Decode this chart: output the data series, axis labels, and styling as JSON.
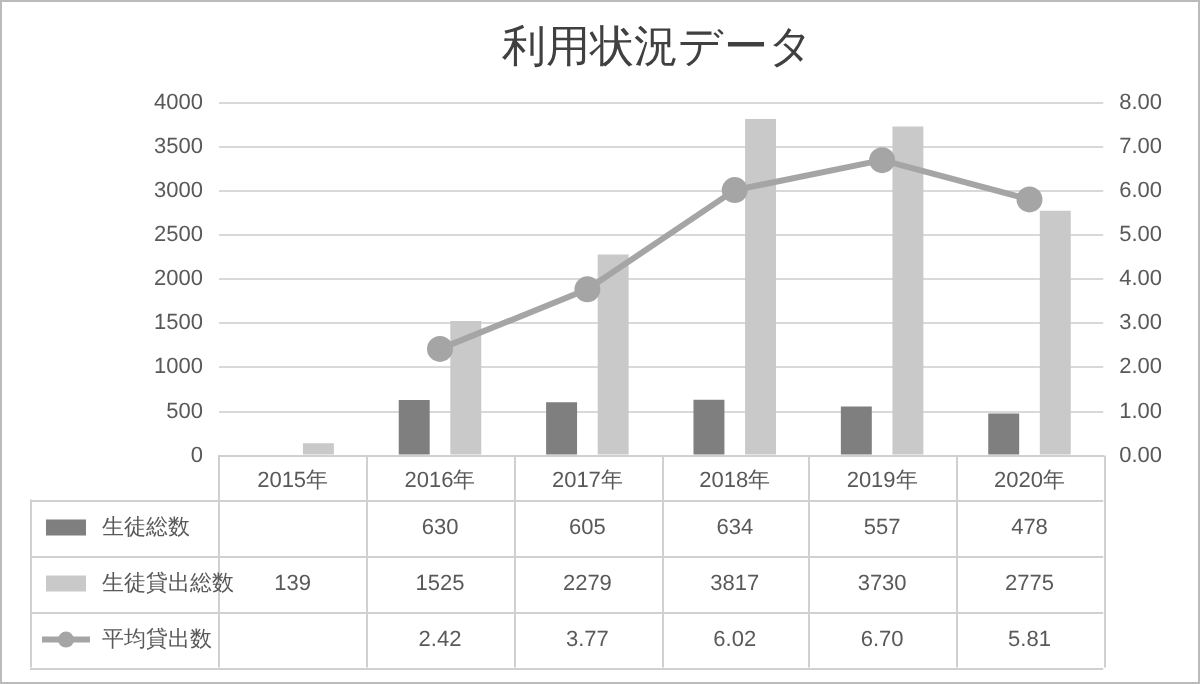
{
  "chart_data": {
    "type": "bar",
    "title": "利用状況データ",
    "categories": [
      "2015年",
      "2016年",
      "2017年",
      "2018年",
      "2019年",
      "2020年"
    ],
    "series": [
      {
        "name": "生徒総数",
        "color": "#7f7f7f",
        "values": [
          null,
          630,
          605,
          634,
          557,
          478
        ],
        "value_labels": [
          null,
          "630",
          "605",
          "634",
          "557",
          "478"
        ]
      },
      {
        "name": "生徒貸出総数",
        "color": "#c9c9c9",
        "values": [
          139,
          1525,
          2279,
          3817,
          3730,
          2775
        ],
        "value_labels": [
          "139",
          "1525",
          "2279",
          "3817",
          "3730",
          "2775"
        ]
      },
      {
        "name": "平均貸出数",
        "type": "line",
        "axis": "y2",
        "color": "#a5a5a5",
        "values": [
          null,
          2.42,
          3.77,
          6.02,
          6.7,
          5.81
        ],
        "value_labels": [
          null,
          "2.42",
          "3.77",
          "6.02",
          "6.70",
          "5.81"
        ]
      }
    ],
    "ylim": [
      0,
      4000
    ],
    "yticks": [
      0,
      500,
      1000,
      1500,
      2000,
      2500,
      3000,
      3500,
      4000
    ],
    "y2lim": [
      0,
      8
    ],
    "y2ticks": [
      {
        "value": 0,
        "label": "0.00"
      },
      {
        "value": 1,
        "label": "1.00"
      },
      {
        "value": 2,
        "label": "2.00"
      },
      {
        "value": 3,
        "label": "3.00"
      },
      {
        "value": 4,
        "label": "4.00"
      },
      {
        "value": 5,
        "label": "5.00"
      },
      {
        "value": 6,
        "label": "6.00"
      },
      {
        "value": 7,
        "label": "7.00"
      },
      {
        "value": 8,
        "label": "8.00"
      }
    ],
    "grid": "y",
    "legend": "bottom",
    "marker": "circle",
    "line_style": "solid"
  }
}
